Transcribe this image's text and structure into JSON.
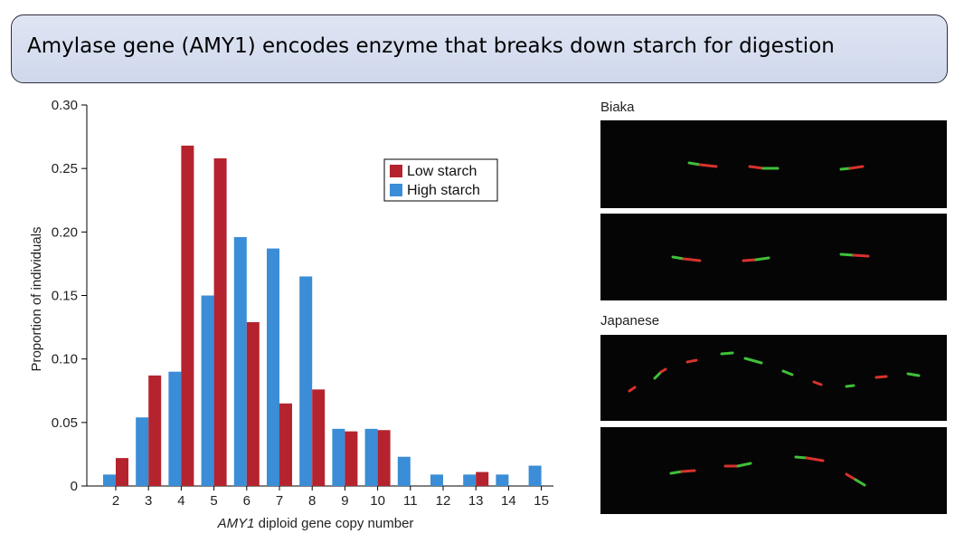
{
  "title": "Amylase gene (AMY1) encodes enzyme that breaks down starch for digestion",
  "chart_data": {
    "type": "bar",
    "categories": [
      "2",
      "3",
      "4",
      "5",
      "6",
      "7",
      "8",
      "9",
      "10",
      "11",
      "12",
      "13",
      "14",
      "15"
    ],
    "series": [
      {
        "name": "Low starch",
        "color": "#b5232f",
        "values": [
          0.022,
          0.087,
          0.268,
          0.258,
          0.129,
          0.065,
          0.076,
          0.043,
          0.044,
          0.0,
          0.0,
          0.011,
          0.0,
          0.0
        ]
      },
      {
        "name": "High starch",
        "color": "#3a8dd6",
        "values": [
          0.009,
          0.054,
          0.09,
          0.15,
          0.196,
          0.187,
          0.165,
          0.045,
          0.045,
          0.023,
          0.009,
          0.009,
          0.009,
          0.016
        ]
      }
    ],
    "draw_order": [
      "High starch",
      "Low starch"
    ],
    "xlabel_italic": "AMY1",
    "xlabel_rest": " diploid gene copy number",
    "ylabel": "Proportion of individuals",
    "ylim": [
      0,
      0.3
    ],
    "yticks": [
      "0",
      "0.05",
      "0.10",
      "0.15",
      "0.20",
      "0.25",
      "0.30"
    ],
    "ytick_values": [
      0,
      0.05,
      0.1,
      0.15,
      0.2,
      0.25,
      0.3
    ],
    "legend_position": "top-right"
  },
  "panels": [
    {
      "label": "Biaka"
    },
    {
      "label": "Japanese"
    }
  ]
}
